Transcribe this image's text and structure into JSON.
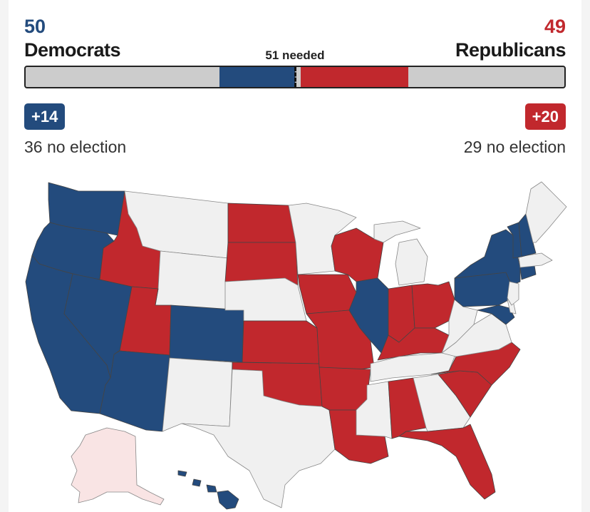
{
  "header": {
    "dem_count": "50",
    "dem_label": "Democrats",
    "rep_count": "49",
    "rep_label": "Republicans",
    "needed_label": "51 needed"
  },
  "seat_bar": {
    "total_seats": 100,
    "dem_seats": 50,
    "rep_seats": 49,
    "seats_needed": 51,
    "dem_no_election": 36,
    "dem_up": 14,
    "rep_up": 20,
    "rep_no_election": 29
  },
  "badges": {
    "dem_up_label": "+14",
    "rep_up_label": "+20"
  },
  "no_election": {
    "dem_label": "36 no election",
    "rep_label": "29 no election"
  },
  "colors": {
    "democrat": "#234b7d",
    "republican": "#c1282d",
    "no_election": "#f0f0f0",
    "not_holding_election_alaska": "#f9e4e4",
    "bar_background": "#cccccc"
  },
  "map": {
    "states_democrat": [
      "WA",
      "OR",
      "CA",
      "NV",
      "AZ",
      "CO",
      "IL",
      "NY",
      "PA",
      "VT",
      "NH",
      "CT",
      "MD",
      "HI"
    ],
    "states_republican": [
      "ID",
      "UT",
      "ND",
      "SD",
      "KS",
      "OK",
      "IA",
      "MO",
      "AR",
      "LA",
      "WI",
      "IN",
      "OH",
      "KY",
      "AL",
      "FL",
      "NC",
      "SC"
    ],
    "states_no_election": [
      "MT",
      "WY",
      "NE",
      "NM",
      "TX",
      "MN",
      "MI",
      "MS",
      "TN",
      "GA",
      "VA",
      "WV",
      "ME",
      "MA",
      "NJ",
      "DE"
    ]
  }
}
